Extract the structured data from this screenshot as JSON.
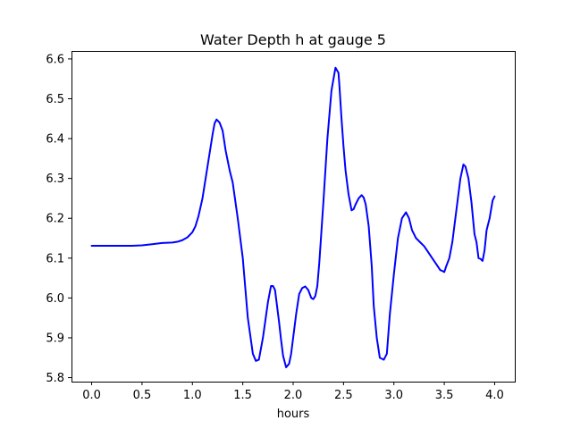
{
  "chart_data": {
    "type": "line",
    "title": "Water Depth h at gauge 5",
    "xlabel": "hours",
    "ylabel": "",
    "xlim": [
      -0.2,
      4.2
    ],
    "ylim": [
      5.79,
      6.62
    ],
    "xticks": [
      0.0,
      0.5,
      1.0,
      1.5,
      2.0,
      2.5,
      3.0,
      3.5,
      4.0
    ],
    "xtick_labels": [
      "0.0",
      "0.5",
      "1.0",
      "1.5",
      "2.0",
      "2.5",
      "3.0",
      "3.5",
      "4.0"
    ],
    "yticks": [
      5.8,
      5.9,
      6.0,
      6.1,
      6.2,
      6.3,
      6.4,
      6.5,
      6.6
    ],
    "ytick_labels": [
      "5.8",
      "5.9",
      "6.0",
      "6.1",
      "6.2",
      "6.3",
      "6.4",
      "6.5",
      "6.6"
    ],
    "grid": false,
    "series": [
      {
        "color": "#0000ff",
        "x": [
          0.0,
          0.2,
          0.4,
          0.5,
          0.6,
          0.7,
          0.8,
          0.85,
          0.9,
          0.95,
          1.0,
          1.03,
          1.06,
          1.1,
          1.15,
          1.2,
          1.22,
          1.24,
          1.27,
          1.3,
          1.33,
          1.37,
          1.4,
          1.45,
          1.5,
          1.55,
          1.6,
          1.63,
          1.66,
          1.7,
          1.75,
          1.78,
          1.8,
          1.82,
          1.84,
          1.86,
          1.88,
          1.9,
          1.93,
          1.96,
          1.98,
          2.0,
          2.03,
          2.06,
          2.09,
          2.12,
          2.15,
          2.18,
          2.2,
          2.22,
          2.24,
          2.26,
          2.3,
          2.34,
          2.38,
          2.42,
          2.45,
          2.46,
          2.48,
          2.5,
          2.52,
          2.55,
          2.58,
          2.6,
          2.62,
          2.65,
          2.68,
          2.7,
          2.72,
          2.75,
          2.78,
          2.8,
          2.83,
          2.86,
          2.9,
          2.93,
          2.96,
          3.0,
          3.04,
          3.08,
          3.12,
          3.15,
          3.18,
          3.22,
          3.26,
          3.3,
          3.34,
          3.38,
          3.42,
          3.46,
          3.48,
          3.5,
          3.52,
          3.55,
          3.58,
          3.62,
          3.66,
          3.69,
          3.71,
          3.74,
          3.77,
          3.8,
          3.82,
          3.84,
          3.86,
          3.88,
          3.9,
          3.92,
          3.95,
          3.98,
          4.0
        ],
        "y": [
          6.131,
          6.131,
          6.131,
          6.132,
          6.135,
          6.138,
          6.139,
          6.141,
          6.145,
          6.152,
          6.165,
          6.18,
          6.205,
          6.25,
          6.33,
          6.41,
          6.438,
          6.448,
          6.44,
          6.42,
          6.37,
          6.32,
          6.29,
          6.2,
          6.1,
          5.95,
          5.86,
          5.842,
          5.845,
          5.9,
          5.99,
          6.03,
          6.03,
          6.02,
          5.98,
          5.94,
          5.895,
          5.855,
          5.826,
          5.835,
          5.86,
          5.9,
          5.96,
          6.01,
          6.025,
          6.029,
          6.02,
          6.0,
          5.997,
          6.005,
          6.03,
          6.09,
          6.24,
          6.4,
          6.52,
          6.578,
          6.565,
          6.53,
          6.45,
          6.38,
          6.32,
          6.26,
          6.22,
          6.223,
          6.235,
          6.25,
          6.258,
          6.252,
          6.235,
          6.18,
          6.08,
          5.98,
          5.9,
          5.85,
          5.845,
          5.86,
          5.96,
          6.06,
          6.15,
          6.2,
          6.215,
          6.2,
          6.17,
          6.15,
          6.14,
          6.13,
          6.115,
          6.1,
          6.085,
          6.07,
          6.068,
          6.065,
          6.08,
          6.1,
          6.14,
          6.22,
          6.3,
          6.335,
          6.33,
          6.3,
          6.24,
          6.16,
          6.14,
          6.1,
          6.098,
          6.093,
          6.12,
          6.17,
          6.2,
          6.245,
          6.255
        ]
      }
    ]
  }
}
